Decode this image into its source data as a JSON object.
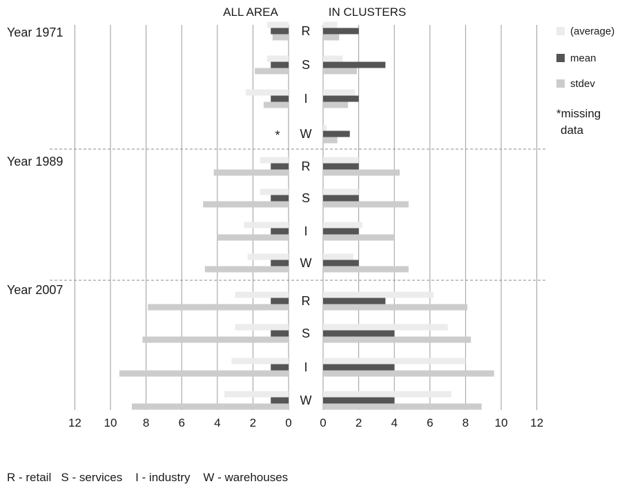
{
  "chart_data": {
    "type": "bar",
    "orientation": "horizontal",
    "panels": [
      {
        "title": "ALL AREA",
        "direction": "left"
      },
      {
        "title": "IN CLUSTERS",
        "direction": "right"
      }
    ],
    "groups": [
      "Year 1971",
      "Year 1989",
      "Year 2007"
    ],
    "categories": [
      "R",
      "S",
      "I",
      "W"
    ],
    "axis_ticks_left": [
      "12",
      "10",
      "8",
      "6",
      "4",
      "2",
      "0"
    ],
    "axis_ticks_right": [
      "0",
      "2",
      "4",
      "6",
      "8",
      "10",
      "12"
    ],
    "xlim": [
      0,
      12
    ],
    "grid": true,
    "legend_position": "right",
    "series": [
      {
        "name": "(average)",
        "color": "#ececec",
        "all_area": [
          [
            1.2,
            1.2,
            2.4,
            null
          ],
          [
            1.6,
            1.6,
            2.5,
            2.3
          ],
          [
            3.0,
            3.0,
            3.2,
            3.6
          ]
        ],
        "in_clusters": [
          [
            0.8,
            1.1,
            1.8,
            0.2
          ],
          [
            2.0,
            2.0,
            2.2,
            1.7
          ],
          [
            6.2,
            7.0,
            8.0,
            7.2
          ]
        ]
      },
      {
        "name": "mean",
        "color": "#555555",
        "all_area": [
          [
            1.0,
            1.0,
            1.0,
            null
          ],
          [
            1.0,
            1.0,
            1.0,
            1.0
          ],
          [
            1.0,
            1.0,
            1.0,
            1.0
          ]
        ],
        "in_clusters": [
          [
            2.0,
            3.5,
            2.0,
            1.5
          ],
          [
            2.0,
            2.0,
            2.0,
            2.0
          ],
          [
            3.5,
            4.0,
            4.0,
            4.0
          ]
        ]
      },
      {
        "name": "stdev",
        "color": "#cccccc",
        "all_area": [
          [
            0.9,
            1.9,
            1.4,
            null
          ],
          [
            4.2,
            4.8,
            4.0,
            4.7
          ],
          [
            7.9,
            8.2,
            9.5,
            8.8
          ]
        ],
        "in_clusters": [
          [
            0.9,
            1.9,
            1.4,
            0.8
          ],
          [
            4.3,
            4.8,
            4.0,
            4.8
          ],
          [
            8.1,
            8.3,
            9.6,
            8.9
          ]
        ]
      }
    ],
    "missing_marker": "*",
    "missing_note": [
      "*missing",
      "data"
    ],
    "footnote": "R - retail   S - services    I - industry    W - warehouses"
  }
}
